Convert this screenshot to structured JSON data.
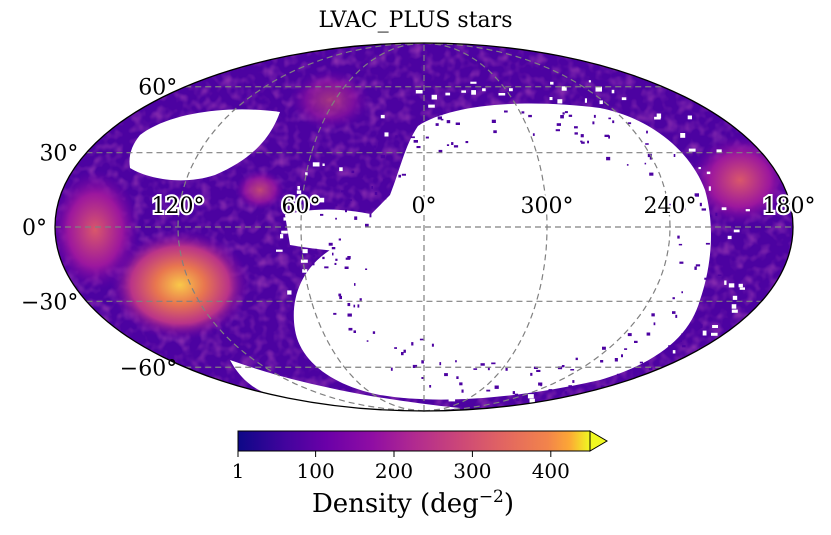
{
  "chart_data": {
    "type": "heatmap",
    "projection": "mollweide",
    "title": "LVAC_PLUS stars",
    "latitude_ticks": [
      "60°",
      "30°",
      "0°",
      "−30°",
      "−60°"
    ],
    "latitude_values": [
      60,
      30,
      0,
      -30,
      -60
    ],
    "longitude_ticks": [
      "120°",
      "60°",
      "0°",
      "300°",
      "240°",
      "180°"
    ],
    "longitude_values": [
      120,
      60,
      0,
      300,
      240,
      180
    ],
    "colorbar": {
      "label": "Density (deg",
      "label_exponent": "−2",
      "label_close": ")",
      "ticks": [
        "1",
        "100",
        "200",
        "300",
        "400"
      ],
      "tick_values": [
        1,
        100,
        200,
        300,
        400
      ],
      "range": [
        1,
        450
      ],
      "colormap": "plasma",
      "extend": "max"
    },
    "colors": {
      "low": "#2a0593",
      "mid_low": "#6a00a8",
      "mid": "#b12a90",
      "mid_high": "#e16462",
      "high": "#fca636",
      "top": "#f0f921",
      "empty": "#ffffff",
      "grid": "#808080"
    },
    "regions": {
      "empty_region": "no data (white) over eastern sky around longitude 0°–270°",
      "high_density": "southern patch near longitude 120°, latitude −25°"
    }
  }
}
